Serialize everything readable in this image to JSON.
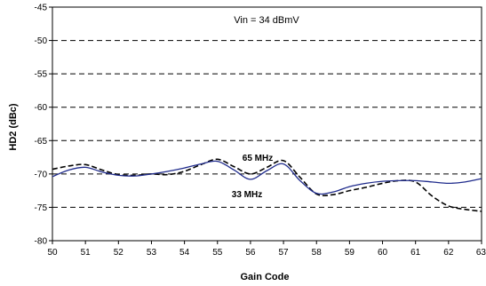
{
  "chart_data": {
    "type": "line",
    "title": "",
    "xlabel": "Gain Code",
    "ylabel": "HD2 (dBc)",
    "xlim": [
      50,
      63
    ],
    "ylim": [
      -80,
      -45
    ],
    "x_ticks": [
      "50",
      "51",
      "52",
      "53",
      "54",
      "55",
      "56",
      "57",
      "58",
      "59",
      "60",
      "61",
      "62",
      "63"
    ],
    "y_ticks": [
      "-45",
      "-50",
      "-55",
      "-60",
      "-65",
      "-70",
      "-75",
      "-80"
    ],
    "grid": "horizontal-dashed",
    "annotations": [
      {
        "text": "Vin = 34 dBmV"
      },
      {
        "text": "65 MHz"
      },
      {
        "text": "33 MHz"
      }
    ],
    "series": [
      {
        "name": "65 MHz",
        "color": "#000000",
        "style": "dashed",
        "x": [
          50,
          50.5,
          51,
          51.5,
          52,
          52.5,
          53,
          53.5,
          54,
          54.5,
          55,
          55.5,
          56,
          56.5,
          57,
          57.5,
          58,
          58.5,
          59,
          59.5,
          60,
          60.5,
          61,
          61.5,
          62,
          62.5,
          63
        ],
        "values": [
          -69.3,
          -68.8,
          -68.6,
          -69.4,
          -70.1,
          -70.2,
          -70.0,
          -70.1,
          -69.6,
          -68.6,
          -67.8,
          -68.9,
          -70.0,
          -69.0,
          -68.0,
          -70.5,
          -73.0,
          -73.1,
          -72.5,
          -72.0,
          -71.4,
          -71.0,
          -71.2,
          -73.3,
          -74.8,
          -75.3,
          -75.6
        ]
      },
      {
        "name": "33 MHz",
        "color": "#1f2b8c",
        "style": "solid",
        "x": [
          50,
          50.5,
          51,
          51.5,
          52,
          52.5,
          53,
          53.5,
          54,
          54.5,
          55,
          55.5,
          56,
          56.5,
          57,
          57.5,
          58,
          58.5,
          59,
          59.5,
          60,
          60.5,
          61,
          61.5,
          62,
          62.5,
          63
        ],
        "values": [
          -70.4,
          -69.4,
          -69.0,
          -69.7,
          -70.2,
          -70.3,
          -70.0,
          -69.6,
          -69.1,
          -68.5,
          -68.1,
          -69.4,
          -70.8,
          -69.5,
          -68.5,
          -71.0,
          -72.9,
          -72.7,
          -71.9,
          -71.4,
          -71.1,
          -71.0,
          -71.0,
          -71.2,
          -71.4,
          -71.2,
          -70.7
        ]
      }
    ]
  }
}
